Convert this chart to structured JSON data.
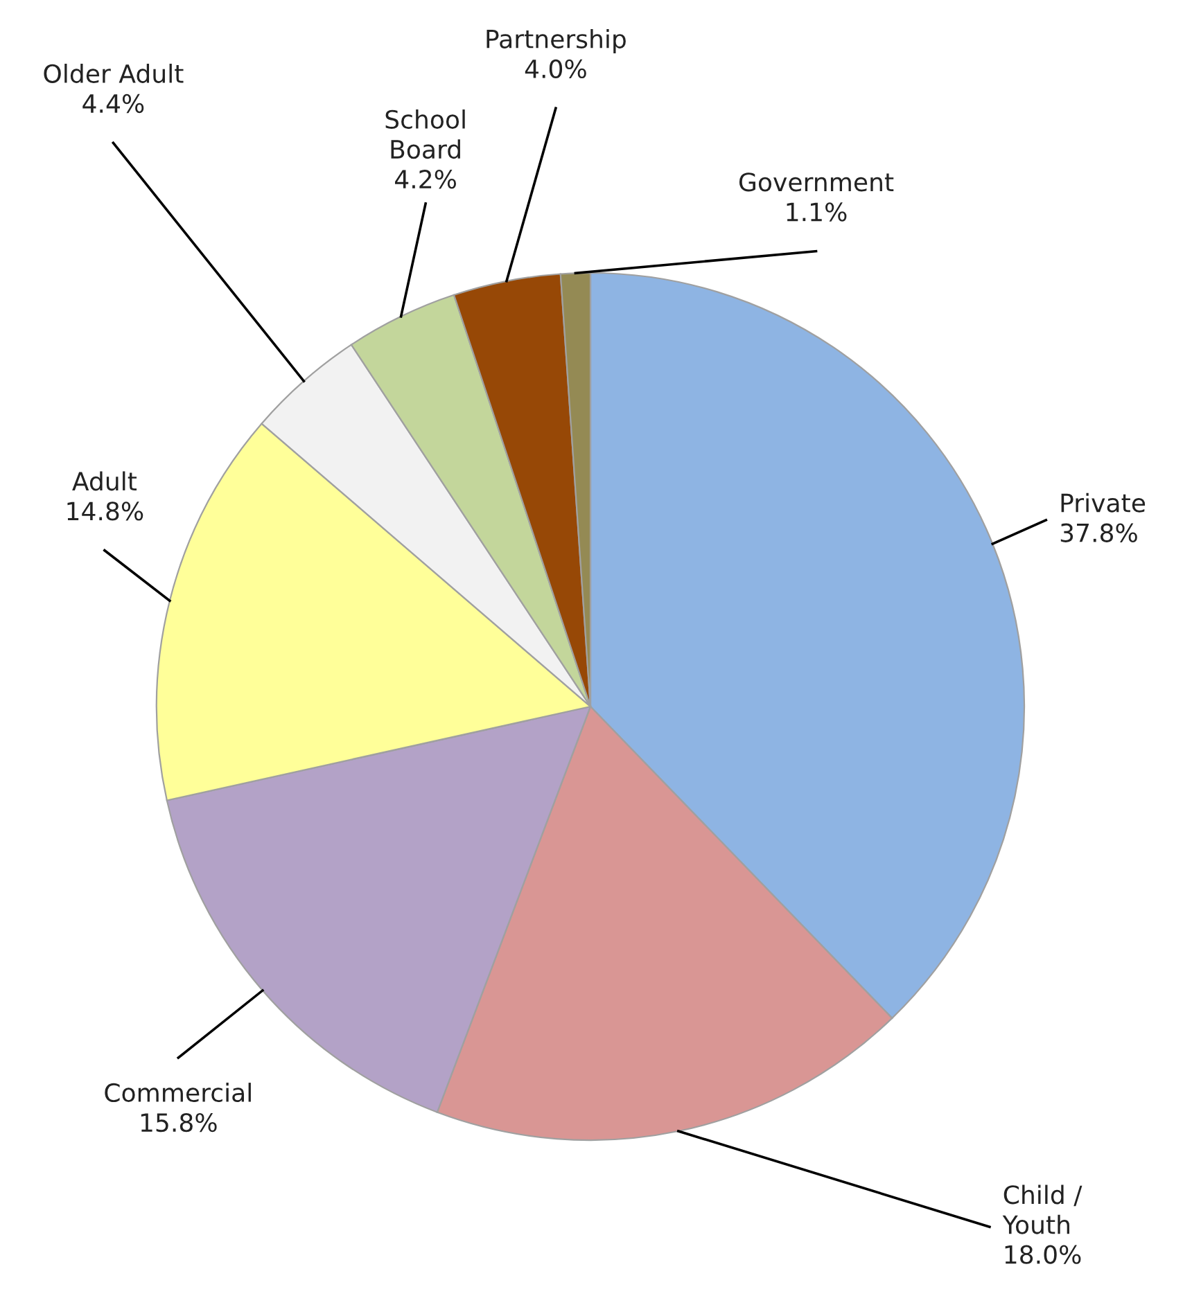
{
  "chart_data": {
    "type": "pie",
    "categories": [
      "Private",
      "Child /\nYouth",
      "Commercial",
      "Adult",
      "Older Adult",
      "School\nBoard",
      "Partnership",
      "Government"
    ],
    "values": [
      37.8,
      18.0,
      15.8,
      14.8,
      4.4,
      4.2,
      4.0,
      1.1
    ],
    "value_labels": [
      "37.8%",
      "18.0%",
      "15.8%",
      "14.8%",
      "4.4%",
      "4.2%",
      "4.0%",
      "1.1%"
    ],
    "colors": [
      "#8eb4e3",
      "#d99694",
      "#b3a2c7",
      "#ffff99",
      "#f2f2f2",
      "#c3d69b",
      "#974806",
      "#948a54"
    ]
  }
}
